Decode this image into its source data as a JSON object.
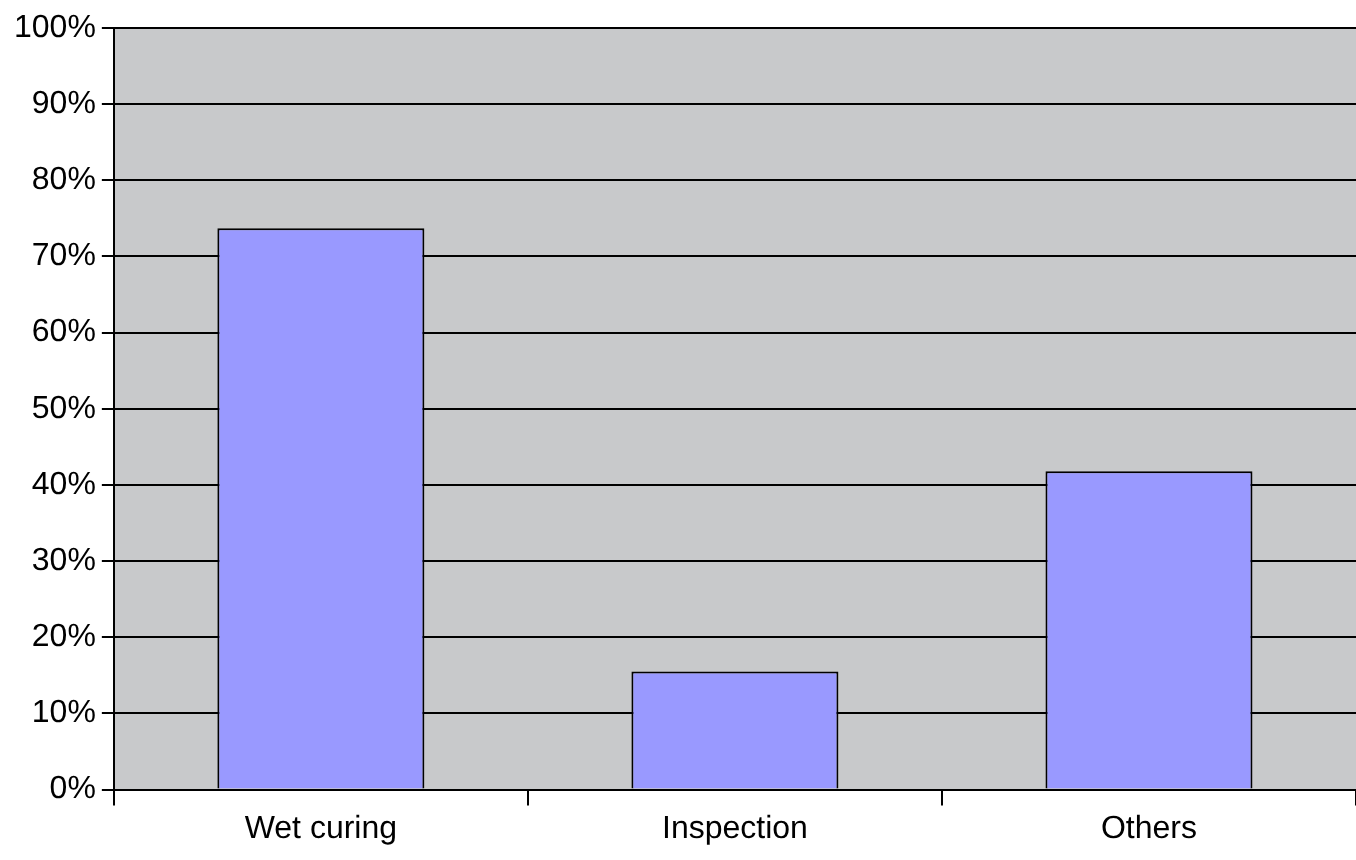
{
  "chart_data": {
    "type": "bar",
    "categories": [
      "Wet curing",
      "Inspection",
      "Others"
    ],
    "values": [
      73.7,
      15.5,
      41.8
    ],
    "color": "#9999ff",
    "ylim": [
      0,
      100
    ],
    "yticks": [
      {
        "value": 0,
        "label": "0%"
      },
      {
        "value": 10,
        "label": "10%"
      },
      {
        "value": 20,
        "label": "20%"
      },
      {
        "value": 30,
        "label": "30%"
      },
      {
        "value": 40,
        "label": "40%"
      },
      {
        "value": 50,
        "label": "50%"
      },
      {
        "value": 60,
        "label": "60%"
      },
      {
        "value": 70,
        "label": "70%"
      },
      {
        "value": 80,
        "label": "80%"
      },
      {
        "value": 90,
        "label": "90%"
      },
      {
        "value": 100,
        "label": "100%"
      }
    ],
    "grid": "y",
    "legend": false
  }
}
